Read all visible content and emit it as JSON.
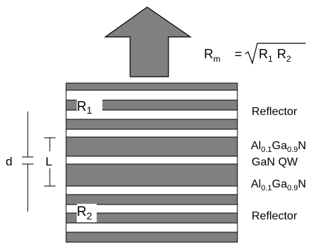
{
  "colors": {
    "background": "#ffffff",
    "semiconductor_layer": "#808080",
    "outline": "#000000"
  },
  "emission_arrow": {
    "icon": "up-arrow"
  },
  "formula": {
    "lhs_base": "R",
    "lhs_sub": "m",
    "equals": "=",
    "r1_base": "R",
    "r1_sub": "1",
    "r2_base": "R",
    "r2_sub": "2"
  },
  "stack": {
    "top_reflector_label": "R",
    "top_reflector_sub": "1",
    "bottom_reflector_label": "R",
    "bottom_reflector_sub": "2"
  },
  "dimensions": {
    "d_label": "d",
    "l_label": "L"
  },
  "labels": {
    "reflector_top": "Reflector",
    "barrier_top": {
      "base1": "Al",
      "sub1": "0.1",
      "base2": "Ga",
      "sub2": "0.9",
      "base3": "N"
    },
    "quantum_well": "GaN QW",
    "barrier_bottom": {
      "base1": "Al",
      "sub1": "0.1",
      "base2": "Ga",
      "sub2": "0.9",
      "base3": "N"
    },
    "reflector_bottom": "Reflector"
  }
}
